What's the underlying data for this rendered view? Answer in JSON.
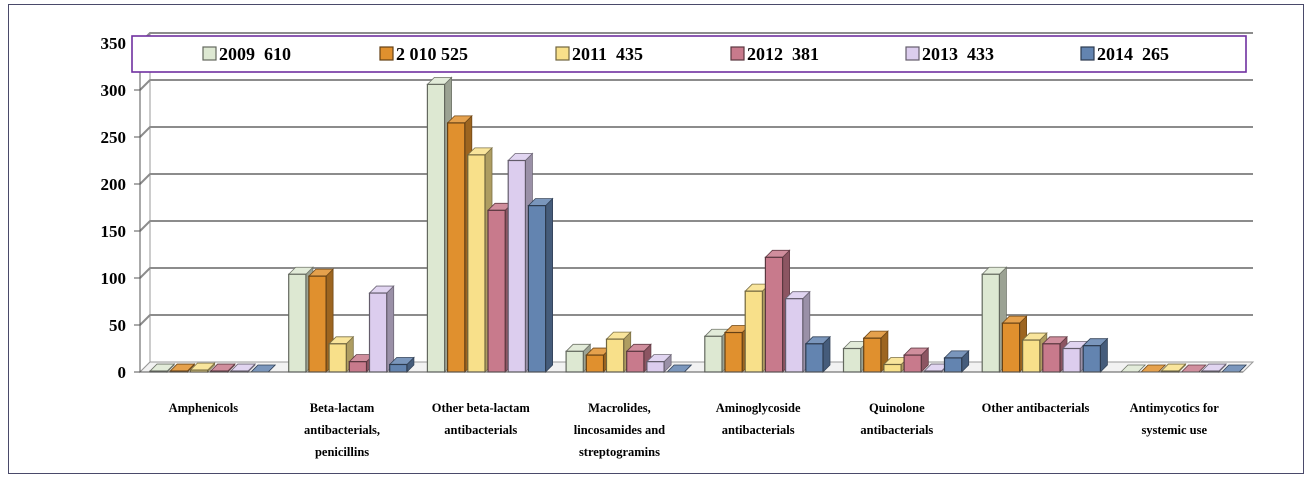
{
  "chart_data": {
    "type": "bar",
    "categories": [
      "Amphenicols",
      "Beta-lactam antibacterials, penicillins",
      "Other  beta-lactam antibacterials",
      "Macrolides, lincosamides and streptogramins",
      "Aminoglycoside antibacterials",
      "Quinolone antibacterials",
      "Other antibacterials",
      "Antimycotics for systemic use"
    ],
    "category_lines": [
      [
        "Amphenicols"
      ],
      [
        "Beta-lactam",
        "antibacterials,",
        "penicillins"
      ],
      [
        "Other  beta-lactam",
        "antibacterials"
      ],
      [
        "Macrolides,",
        "lincosamides and",
        "streptogramins"
      ],
      [
        "Aminoglycoside",
        "antibacterials"
      ],
      [
        "Quinolone",
        "antibacterials"
      ],
      [
        "Other antibacterials"
      ],
      [
        "Antimycotics for",
        "systemic use"
      ]
    ],
    "series": [
      {
        "name": "2009  610",
        "color": "#dde8d2",
        "values": [
          1,
          104,
          306,
          22,
          38,
          25,
          104,
          0
        ]
      },
      {
        "name": "2 010 525",
        "color": "#e0902e",
        "values": [
          1,
          102,
          265,
          18,
          42,
          36,
          52,
          0
        ]
      },
      {
        "name": "2011  435",
        "color": "#f8e08a",
        "values": [
          2,
          30,
          231,
          35,
          86,
          8,
          34,
          1
        ]
      },
      {
        "name": "2012  381",
        "color": "#c87a8c",
        "values": [
          1,
          11,
          172,
          22,
          122,
          18,
          30,
          0
        ]
      },
      {
        "name": "2013  433",
        "color": "#dccdee",
        "values": [
          1,
          84,
          225,
          11,
          78,
          1,
          25,
          1
        ]
      },
      {
        "name": "2014  265",
        "color": "#6384b0",
        "values": [
          0,
          8,
          177,
          0,
          30,
          15,
          28,
          0
        ]
      }
    ],
    "ylim": [
      0,
      350
    ],
    "yticks": [
      0,
      50,
      100,
      150,
      200,
      250,
      300,
      350
    ],
    "grid": true,
    "legend": "top"
  }
}
